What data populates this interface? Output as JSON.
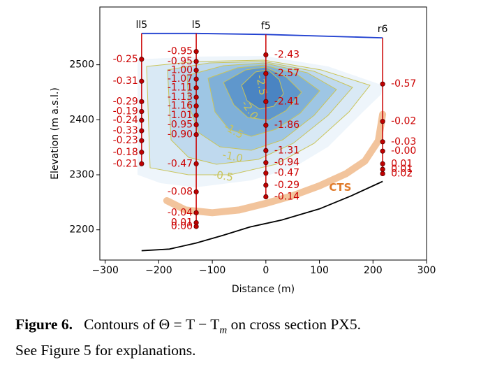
{
  "caption": {
    "label": "Figure 6.",
    "text_line1": "Contours of Θ = T − T",
    "subscript": "m",
    "text_line1_end": " on cross section PX5.",
    "text_line2": "See Figure 5 for explanations."
  },
  "chart_data": {
    "type": "contour",
    "title": "",
    "xlabel": "Distance (m)",
    "ylabel": "Elevation (m a.s.l.)",
    "xlim": [
      -310,
      300
    ],
    "ylim": [
      2145,
      2605
    ],
    "xticks": [
      -300,
      -200,
      -100,
      0,
      100,
      200,
      300
    ],
    "yticks": [
      2200,
      2300,
      2400,
      2500
    ],
    "xtick_labels": [
      "−300",
      "−200",
      "−100",
      "0",
      "100",
      "200",
      "300"
    ],
    "ytick_labels": [
      "2200",
      "2300",
      "2400",
      "2500"
    ],
    "grid": false,
    "colors": {
      "surface": "#1f3fd0",
      "bed": "#000000",
      "cts": "#f2c49c",
      "cts_label": "#e07a2a",
      "labels": "#cc0000",
      "contour_lines": "#c9c45a"
    },
    "surface_line": {
      "x": [
        -232,
        -130,
        0,
        218
      ],
      "y": [
        2557,
        2557,
        2555,
        2549
      ]
    },
    "bed_line": {
      "x": [
        -232,
        -180,
        -130,
        -80,
        -30,
        30,
        100,
        160,
        218
      ],
      "y": [
        2162,
        2165,
        2176,
        2190,
        2205,
        2218,
        2238,
        2262,
        2288
      ]
    },
    "cts_line": {
      "label": "CTS",
      "x": [
        -185,
        -150,
        -100,
        -50,
        0,
        50,
        100,
        150,
        185,
        210,
        218
      ],
      "y": [
        2253,
        2236,
        2231,
        2236,
        2248,
        2262,
        2280,
        2302,
        2325,
        2362,
        2410
      ]
    },
    "contour_levels": [
      "-2.5",
      "-2.0",
      "-1.5",
      "-1.0",
      "-0.5"
    ],
    "contour_labels": [
      {
        "text": "-2.5",
        "x": -8,
        "y": 2463
      },
      {
        "text": "-2.0",
        "x": -30,
        "y": 2418
      },
      {
        "text": "-1.5",
        "x": -60,
        "y": 2380
      },
      {
        "text": "-1.0",
        "x": -62,
        "y": 2333
      },
      {
        "text": "-0.5",
        "x": -80,
        "y": 2298
      }
    ],
    "boreholes": [
      {
        "name": "ll5",
        "x": -232,
        "top": 2557,
        "bottom": 2318,
        "points": [
          [
            2510,
            "-0.25"
          ],
          [
            2470,
            "-0.31"
          ],
          [
            2433,
            "-0.29"
          ],
          [
            2415,
            "-0.19"
          ],
          [
            2399,
            "-0.24"
          ],
          [
            2380,
            "-0.33"
          ],
          [
            2362,
            "-0.23"
          ],
          [
            2341,
            "-0.18"
          ],
          [
            2320,
            "-0.21"
          ]
        ]
      },
      {
        "name": "l5",
        "x": -130,
        "top": 2557,
        "bottom": 2204,
        "points": [
          [
            2524,
            "-0.95"
          ],
          [
            2506,
            "-0.95"
          ],
          [
            2490,
            "-1.00"
          ],
          [
            2474,
            "-1.07"
          ],
          [
            2458,
            "-1.11"
          ],
          [
            2441,
            "-1.13"
          ],
          [
            2425,
            "-1.16"
          ],
          [
            2408,
            "-1.01"
          ],
          [
            2391,
            "-0.95"
          ],
          [
            2373,
            "-0.90"
          ],
          [
            2320,
            "-0.47"
          ],
          [
            2269,
            "-0.08"
          ],
          [
            2231,
            "-0.04"
          ],
          [
            2213,
            "0.01"
          ],
          [
            2206,
            "0.00"
          ]
        ]
      },
      {
        "name": "f5",
        "x": 0,
        "top": 2555,
        "bottom": 2258,
        "points": [
          [
            2518,
            "-2.43"
          ],
          [
            2484,
            "-2.57"
          ],
          [
            2433,
            "-2.41"
          ],
          [
            2390,
            "-1.86"
          ],
          [
            2344,
            "-1.31"
          ],
          [
            2322,
            "-0.94"
          ],
          [
            2303,
            "-0.47"
          ],
          [
            2281,
            "-0.29"
          ],
          [
            2260,
            "-0.14"
          ]
        ]
      },
      {
        "name": "r6",
        "x": 218,
        "top": 2549,
        "bottom": 2300,
        "points": [
          [
            2465,
            "-0.57"
          ],
          [
            2397,
            "-0.02"
          ],
          [
            2360,
            "-0.03"
          ],
          [
            2343,
            "-0.00"
          ],
          [
            2320,
            "0.01"
          ],
          [
            2310,
            "0.01"
          ],
          [
            2302,
            "0.02"
          ]
        ]
      }
    ]
  }
}
